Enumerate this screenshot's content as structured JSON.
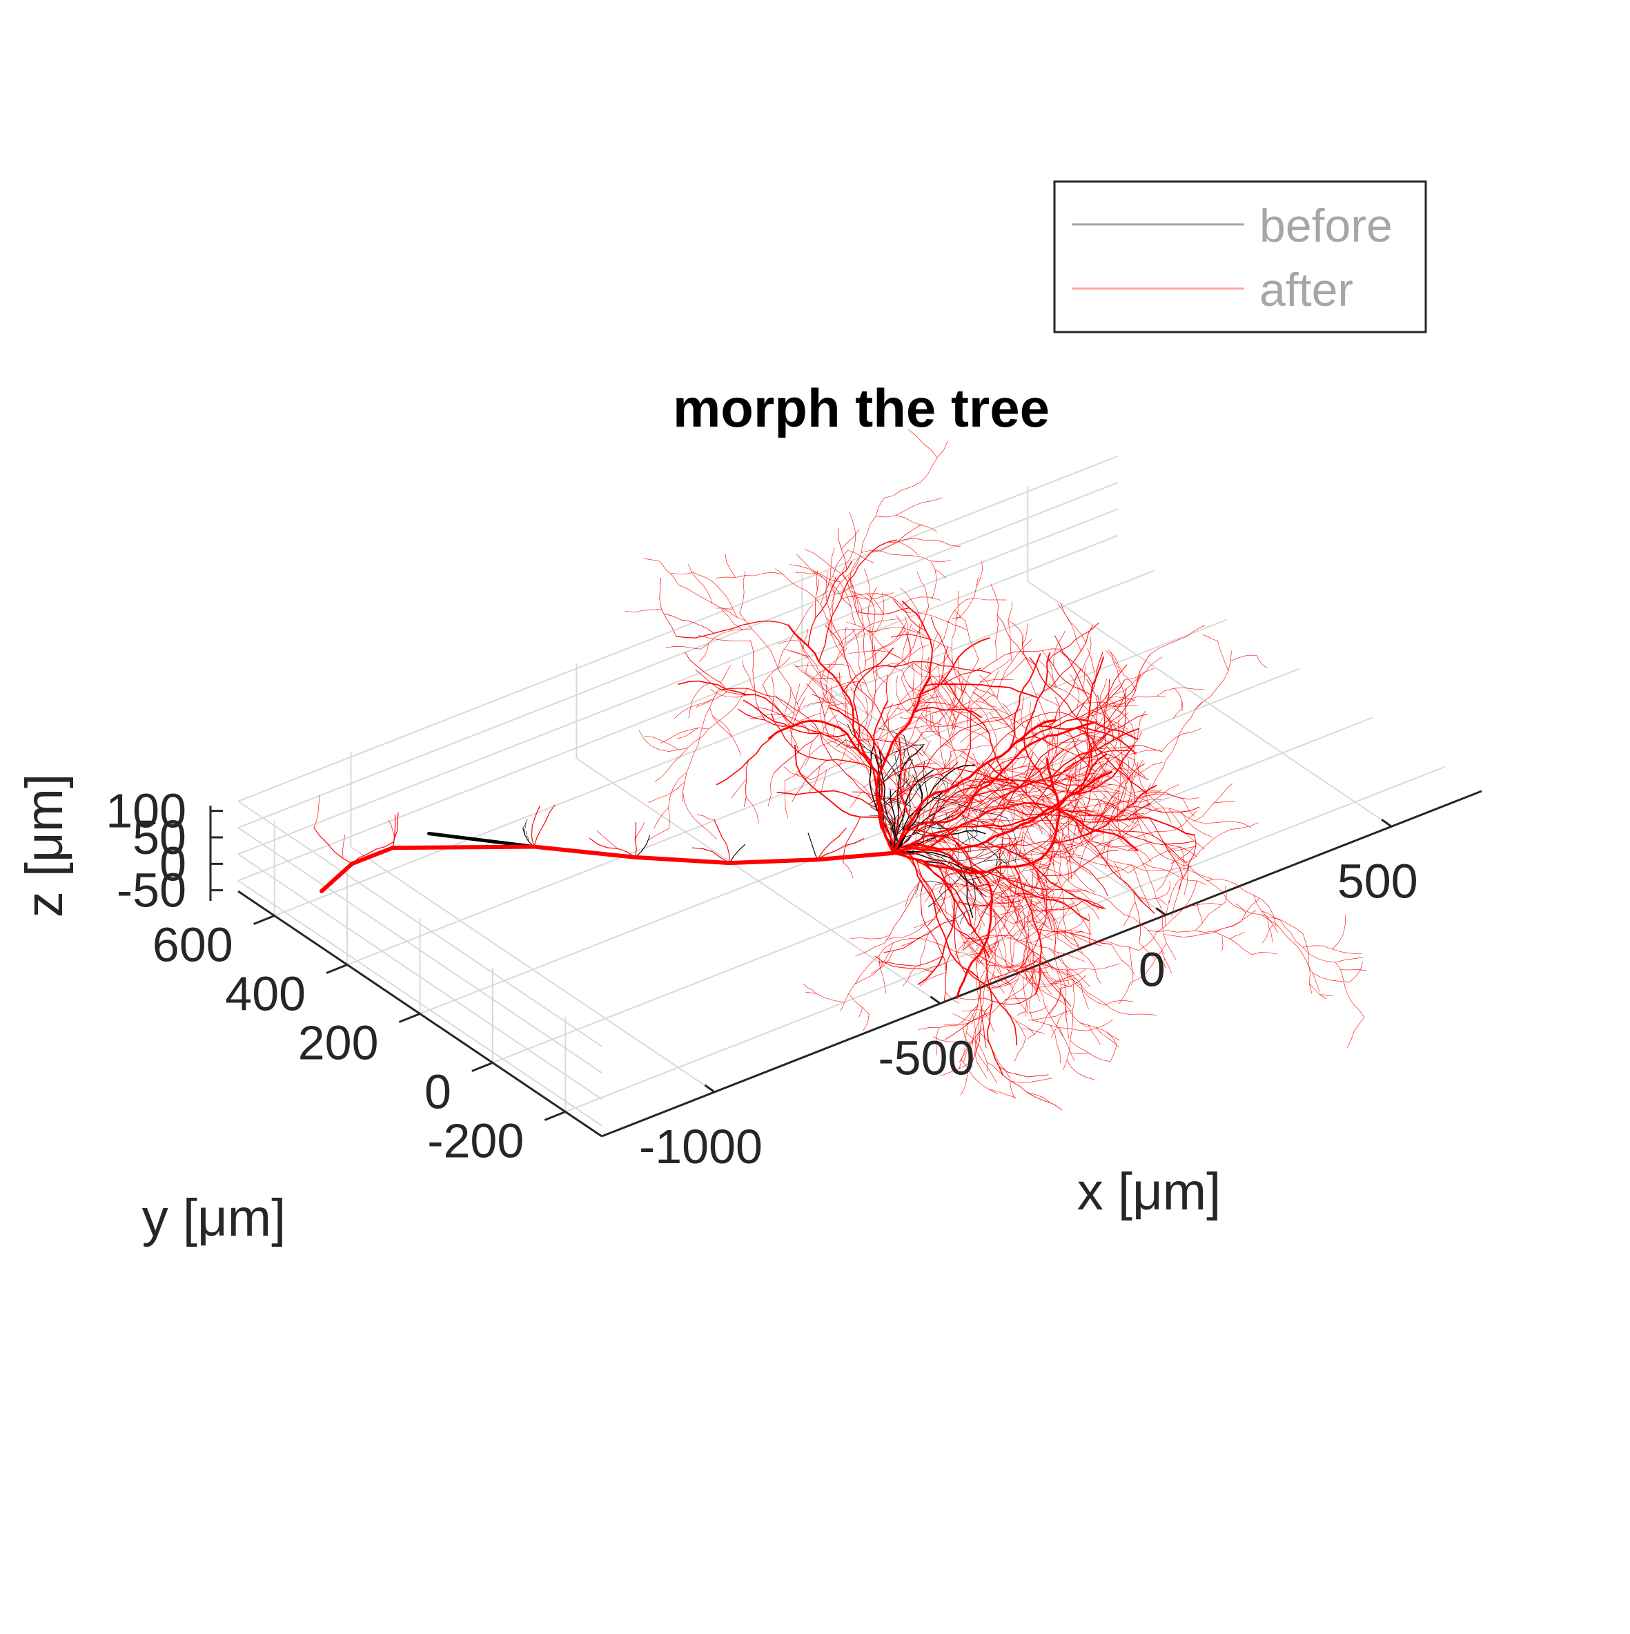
{
  "chart_data": {
    "type": "line",
    "subtype": "3d-morphology",
    "title": "morph the tree",
    "xlabel": "x [μm]",
    "ylabel": "y [μm]",
    "zlabel": "z [μm]",
    "xlim": [
      -1250,
      700
    ],
    "ylim": [
      -300,
      700
    ],
    "zlim": [
      -70,
      110
    ],
    "xticks": [
      -1000,
      -500,
      0,
      500
    ],
    "yticks": [
      -200,
      0,
      200,
      400,
      600
    ],
    "zticks": [
      -50,
      0,
      50,
      100
    ],
    "xtick_labels": [
      "-1000",
      "-500",
      "0",
      "500"
    ],
    "ytick_labels": [
      "-200",
      "0",
      "200",
      "400",
      "600"
    ],
    "ztick_labels": [
      "-50",
      "0",
      "50",
      "100"
    ],
    "grid": true,
    "legend_position": "top-right, outside axes",
    "series": [
      {
        "name": "before",
        "color": "#000000",
        "main_path": [
          {
            "x": -940,
            "y": 560,
            "z": 0
          },
          {
            "x": -820,
            "y": 420,
            "z": 0
          },
          {
            "x": -700,
            "y": 290,
            "z": 0
          },
          {
            "x": -580,
            "y": 180,
            "z": 0
          },
          {
            "x": -450,
            "y": 100,
            "z": 0
          },
          {
            "x": -330,
            "y": 40,
            "z": 0
          }
        ]
      },
      {
        "name": "after",
        "color": "#ff0000",
        "main_path": [
          {
            "x": -1210,
            "y": 520,
            "z": 0
          },
          {
            "x": -1110,
            "y": 560,
            "z": 0
          },
          {
            "x": -1020,
            "y": 560,
            "z": 0
          },
          {
            "x": -820,
            "y": 420,
            "z": 0
          },
          {
            "x": -700,
            "y": 290,
            "z": 0
          },
          {
            "x": -580,
            "y": 180,
            "z": 0
          },
          {
            "x": -450,
            "y": 100,
            "z": 0
          },
          {
            "x": -330,
            "y": 40,
            "z": 0
          }
        ]
      }
    ]
  }
}
